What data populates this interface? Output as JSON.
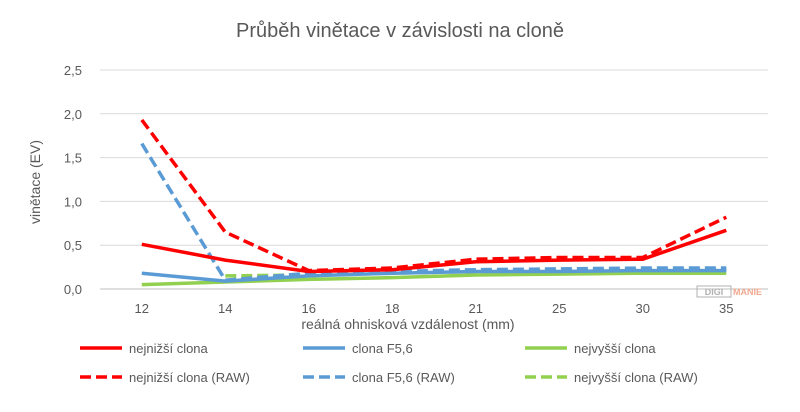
{
  "chart_data": {
    "type": "line",
    "title": "Průběh vinětace v závislosti na cloně",
    "xlabel": "reálná ohnisková vzdálenost (mm)",
    "ylabel": "vinětace (EV)",
    "categories": [
      "12",
      "14",
      "16",
      "18",
      "21",
      "25",
      "30",
      "35"
    ],
    "ylim": [
      0,
      2.5
    ],
    "yticks": [
      "0,0",
      "0,5",
      "1,0",
      "1,5",
      "2,0",
      "2,5"
    ],
    "grid": true,
    "legend_position": "bottom",
    "series": [
      {
        "name": "nejnižší clona",
        "color": "#ff0000",
        "dashed": false,
        "values": [
          0.51,
          0.33,
          0.2,
          0.22,
          0.31,
          0.33,
          0.34,
          0.67
        ]
      },
      {
        "name": "clona F5,6",
        "color": "#5b9bd5",
        "dashed": false,
        "values": [
          0.18,
          0.09,
          0.15,
          0.18,
          0.2,
          0.2,
          0.21,
          0.21
        ]
      },
      {
        "name": "nejvyšší clona",
        "color": "#92d050",
        "dashed": false,
        "values": [
          0.05,
          0.08,
          0.11,
          0.13,
          0.16,
          0.17,
          0.18,
          0.18
        ]
      },
      {
        "name": "nejnižší clona (RAW)",
        "color": "#ff0000",
        "dashed": true,
        "values": [
          1.93,
          0.65,
          0.21,
          0.24,
          0.34,
          0.36,
          0.36,
          0.82
        ]
      },
      {
        "name": "clona F5,6 (RAW)",
        "color": "#5b9bd5",
        "dashed": true,
        "values": [
          1.66,
          0.1,
          0.18,
          0.2,
          0.22,
          0.23,
          0.24,
          0.24
        ]
      },
      {
        "name": "nejvyšší clona (RAW)",
        "color": "#92d050",
        "dashed": true,
        "values": [
          null,
          0.15,
          0.16,
          0.18,
          0.2,
          0.21,
          0.22,
          0.22
        ]
      }
    ]
  },
  "watermark": {
    "part1": "DIGI",
    "part2": "MANIE"
  }
}
